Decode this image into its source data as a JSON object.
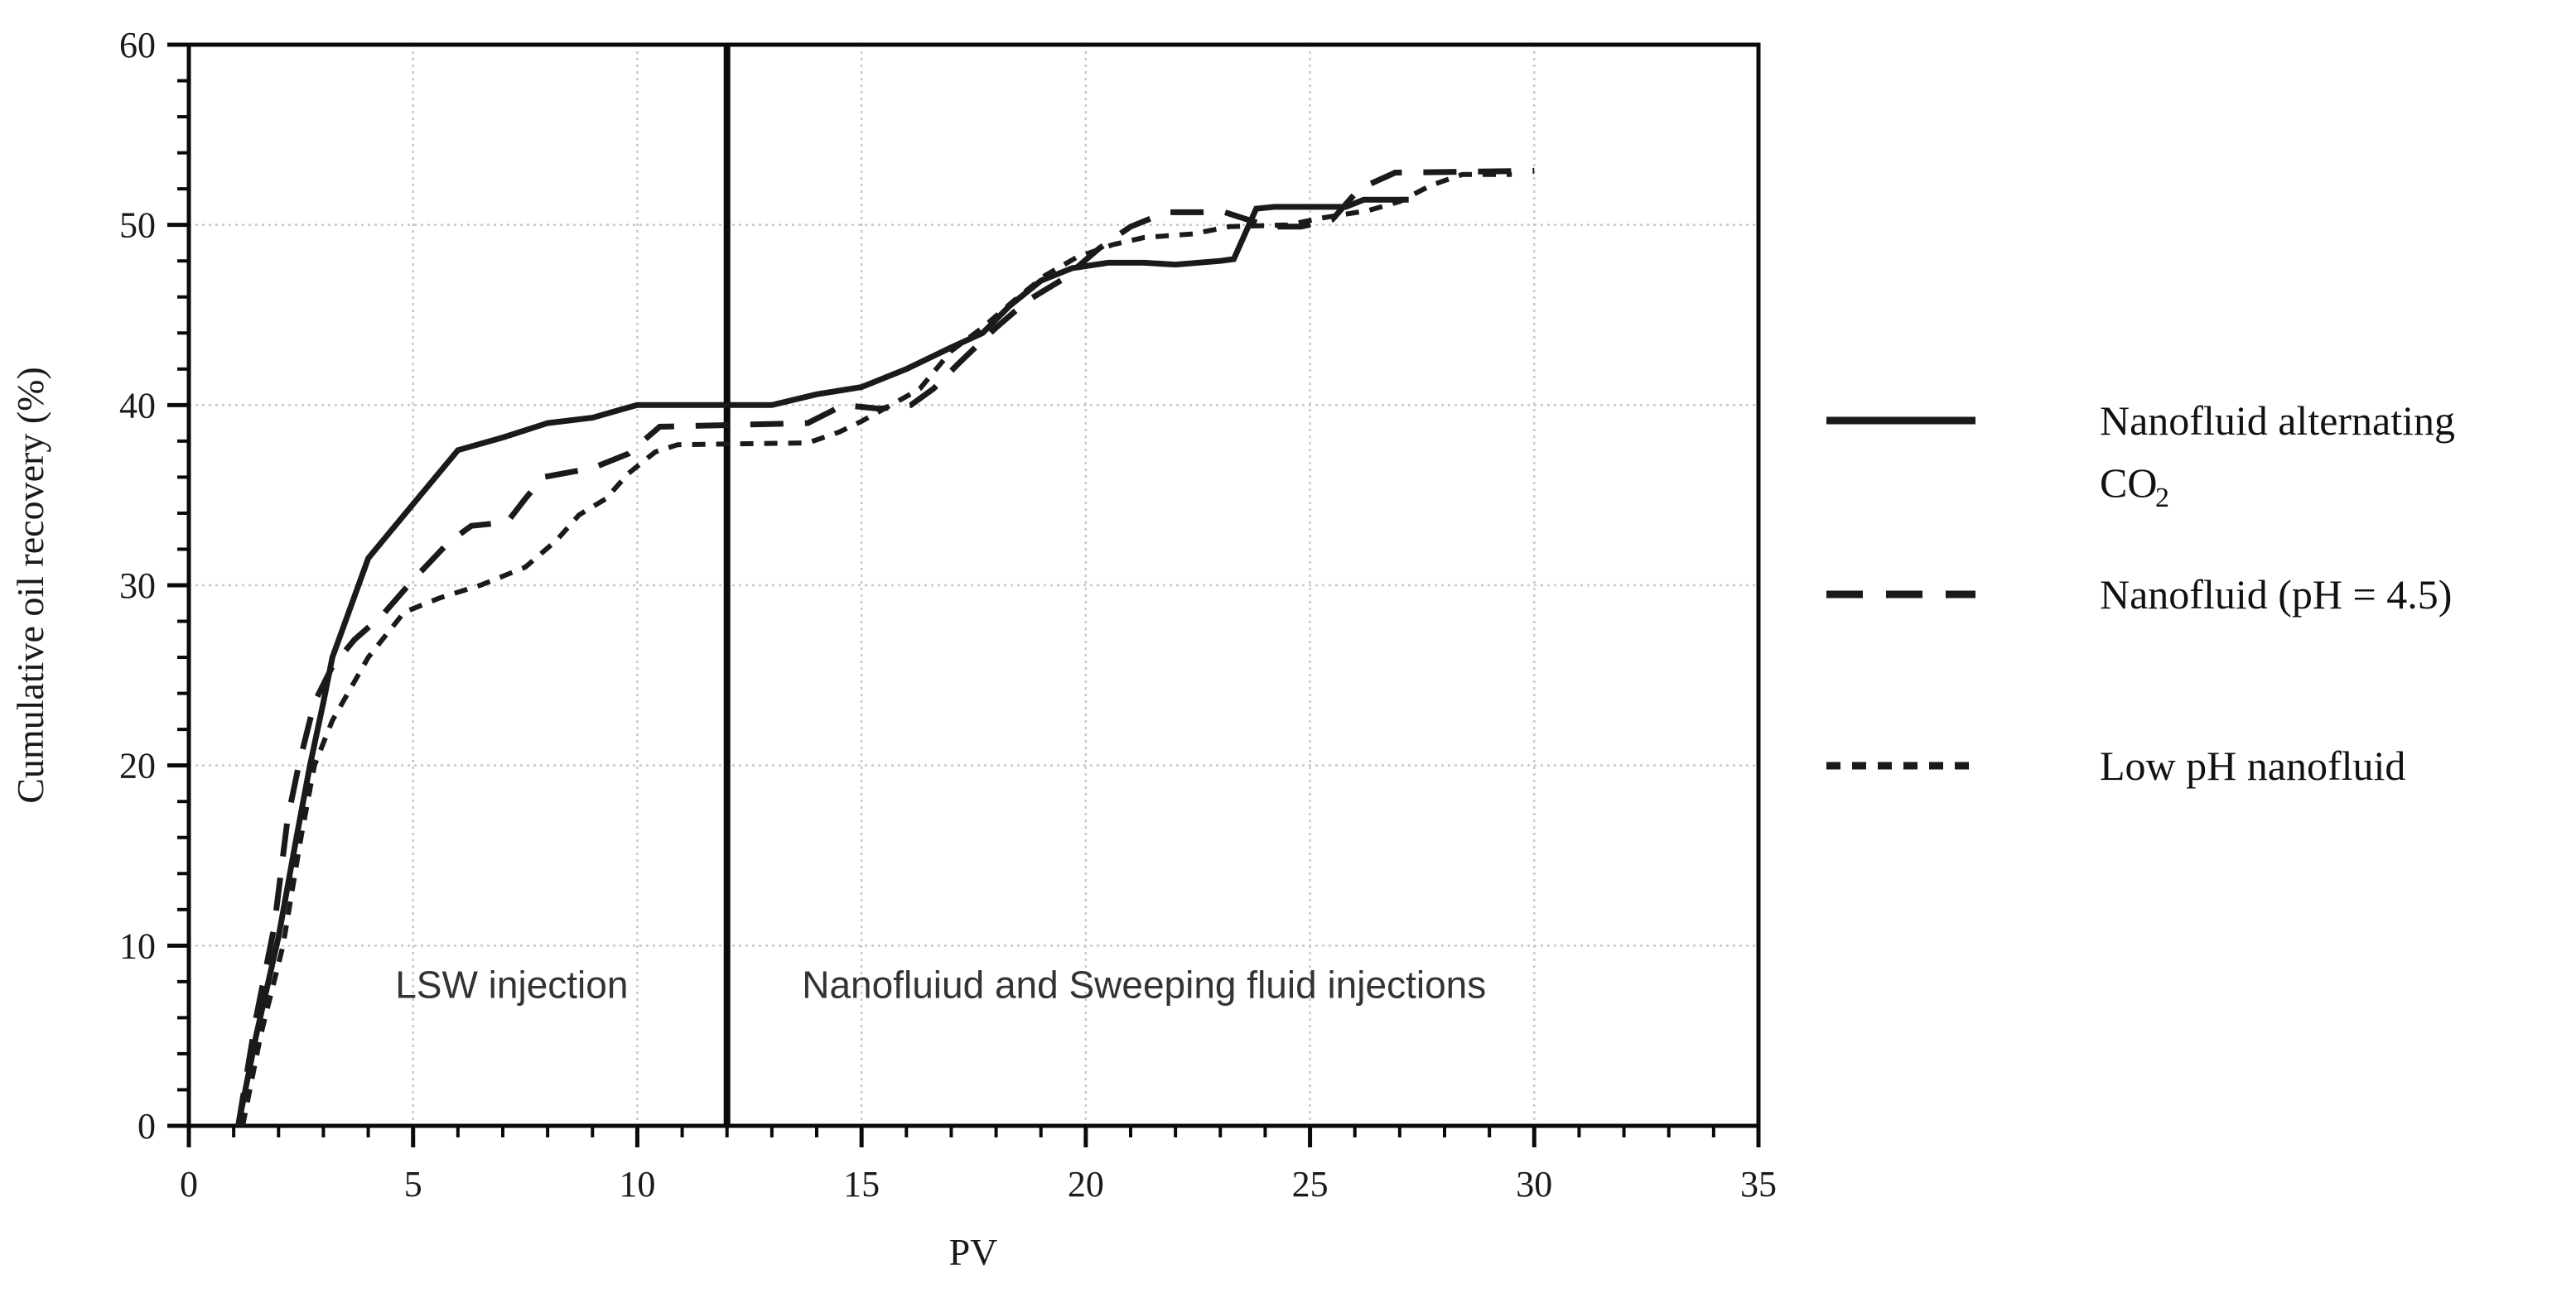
{
  "figure": {
    "background": "#ffffff",
    "line_color": "#1a1a1a",
    "grid_color": "#c8c8c8",
    "annotation_color": "#333333"
  },
  "axes": {
    "x_label": "PV",
    "y_label": "Cumulative oil recovery (%)"
  },
  "annotations": {
    "left_zone": "LSW injection",
    "right_zone": "Nanofluiud and Sweeping fluid injections"
  },
  "legend": {
    "item1_line1": "Nanofluid alternating",
    "item1_line2_base": "CO",
    "item1_line2_sub": "2",
    "item2_label": "Nanofluid (pH = 4.5)",
    "item3_label": "Low pH nanofluid"
  },
  "chart_data": {
    "type": "line",
    "title": "",
    "xlabel": "PV",
    "ylabel": "Cumulative oil recovery (%)",
    "xlim": [
      0,
      35
    ],
    "ylim": [
      0,
      60
    ],
    "x_ticks": [
      0,
      5,
      10,
      15,
      20,
      25,
      30,
      35
    ],
    "y_ticks": [
      0,
      10,
      20,
      30,
      40,
      50,
      60
    ],
    "x_minor_step": 1,
    "y_minor_step": 2,
    "grid": true,
    "legend_position": "right-outside",
    "divider_pv": 12,
    "zone_labels": [
      {
        "text": "LSW injection",
        "pv": 7.2,
        "value": 7.1
      },
      {
        "text": "Nanofluiud and Sweeping fluid injections",
        "pv": 21.3,
        "value": 7.1
      }
    ],
    "series": [
      {
        "name": "Low pH nanofluid",
        "style": "short-dash",
        "dash": "16 13",
        "width": 6,
        "color": "#1a1a1a",
        "points": [
          [
            1.2,
            0
          ],
          [
            1.6,
            5
          ],
          [
            2.1,
            10
          ],
          [
            2.5,
            16
          ],
          [
            2.8,
            20
          ],
          [
            3.2,
            22.5
          ],
          [
            4,
            26
          ],
          [
            4.8,
            28.5
          ],
          [
            5.6,
            29.3
          ],
          [
            6.5,
            30
          ],
          [
            7.5,
            31
          ],
          [
            8.2,
            32.5
          ],
          [
            8.7,
            33.9
          ],
          [
            9.3,
            34.8
          ],
          [
            9.8,
            36.2
          ],
          [
            10.4,
            37.4
          ],
          [
            10.9,
            37.8
          ],
          [
            13.8,
            37.9
          ],
          [
            14.5,
            38.5
          ],
          [
            15,
            39.1
          ],
          [
            15.8,
            40.2
          ],
          [
            16.3,
            40.9
          ],
          [
            17,
            43
          ],
          [
            17.7,
            44.3
          ],
          [
            18.4,
            45.8
          ],
          [
            19.1,
            47.2
          ],
          [
            19.8,
            48.2
          ],
          [
            20.6,
            48.9
          ],
          [
            21.3,
            49.3
          ],
          [
            22.4,
            49.5
          ],
          [
            23.2,
            49.9
          ],
          [
            24.5,
            50
          ],
          [
            25.3,
            50.4
          ],
          [
            26.3,
            50.8
          ],
          [
            27,
            51.3
          ],
          [
            27.7,
            52.2
          ],
          [
            28.4,
            52.8
          ],
          [
            29.5,
            52.8
          ]
        ]
      },
      {
        "name": "Nanofluid (pH = 4.5)",
        "style": "long-dash",
        "dash": "40 26",
        "width": 7,
        "color": "#1a1a1a",
        "points": [
          [
            1.1,
            0
          ],
          [
            1.5,
            6
          ],
          [
            1.9,
            11
          ],
          [
            2.2,
            17
          ],
          [
            2.45,
            20
          ],
          [
            2.8,
            23.5
          ],
          [
            3.2,
            25.5
          ],
          [
            3.7,
            27
          ],
          [
            4.3,
            28.3
          ],
          [
            5,
            30.3
          ],
          [
            5.8,
            32.4
          ],
          [
            6.3,
            33.3
          ],
          [
            7.1,
            33.5
          ],
          [
            7.5,
            34.8
          ],
          [
            7.9,
            36
          ],
          [
            9,
            36.5
          ],
          [
            9.8,
            37.3
          ],
          [
            10.5,
            38.8
          ],
          [
            13.8,
            39
          ],
          [
            14.6,
            40
          ],
          [
            15.4,
            39.8
          ],
          [
            16.1,
            40
          ],
          [
            16.6,
            40.9
          ],
          [
            17.2,
            42.4
          ],
          [
            18,
            44.3
          ],
          [
            18.7,
            45.8
          ],
          [
            19.5,
            47
          ],
          [
            20.3,
            48.7
          ],
          [
            21,
            49.9
          ],
          [
            21.8,
            50.7
          ],
          [
            23.1,
            50.7
          ],
          [
            24.1,
            49.9
          ],
          [
            24.8,
            49.9
          ],
          [
            25.5,
            50.3
          ],
          [
            26.1,
            52
          ],
          [
            26.9,
            52.9
          ],
          [
            30,
            53
          ]
        ]
      },
      {
        "name": "Nanofluid alternating CO₂",
        "style": "solid",
        "dash": "",
        "width": 7,
        "color": "#1a1a1a",
        "points": [
          [
            1.1,
            0
          ],
          [
            1.5,
            5
          ],
          [
            2,
            10.5
          ],
          [
            2.4,
            16
          ],
          [
            2.7,
            20
          ],
          [
            3,
            23.5
          ],
          [
            3.2,
            26
          ],
          [
            4,
            31.5
          ],
          [
            4.5,
            33
          ],
          [
            5,
            34.5
          ],
          [
            5.5,
            36
          ],
          [
            6,
            37.5
          ],
          [
            7,
            38.2
          ],
          [
            8,
            39
          ],
          [
            9,
            39.3
          ],
          [
            9.7,
            39.8
          ],
          [
            10,
            40
          ],
          [
            13,
            40
          ],
          [
            14,
            40.6
          ],
          [
            15,
            41
          ],
          [
            16,
            42
          ],
          [
            17,
            43.2
          ],
          [
            17.7,
            44
          ],
          [
            18.3,
            45.5
          ],
          [
            19,
            46.9
          ],
          [
            19.7,
            47.6
          ],
          [
            20.5,
            47.9
          ],
          [
            21.3,
            47.9
          ],
          [
            22,
            47.8
          ],
          [
            23,
            48
          ],
          [
            23.3,
            48.1
          ],
          [
            23.8,
            50.9
          ],
          [
            24.2,
            51
          ],
          [
            25.8,
            51
          ],
          [
            26.2,
            51.4
          ],
          [
            27.2,
            51.4
          ]
        ]
      }
    ]
  }
}
